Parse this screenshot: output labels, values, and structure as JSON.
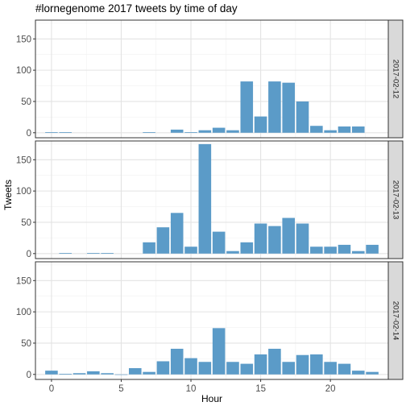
{
  "chart_data": {
    "type": "bar",
    "title": "#lornegenome 2017 tweets by time of day",
    "xlabel": "Hour",
    "ylabel": "Tweets",
    "xlim": [
      -1.15,
      24.15
    ],
    "ylim": [
      -8,
      180
    ],
    "x_ticks": [
      0,
      5,
      10,
      15,
      20
    ],
    "y_ticks": [
      0,
      50,
      100,
      150
    ],
    "x_minor_ticks": [
      2.5,
      7.5,
      12.5,
      17.5,
      22.5
    ],
    "y_minor_ticks": [
      25,
      75,
      125,
      175
    ],
    "grid": true,
    "bar_color": "#5b9bc8",
    "panel_border_color": "#333333",
    "strip_fill": "#d9d9d9",
    "facets": [
      {
        "label": "2017-02-12",
        "x": [
          0,
          1,
          7,
          9,
          10,
          11,
          12,
          13,
          14,
          15,
          16,
          17,
          18,
          19,
          20,
          21,
          22
        ],
        "values": [
          1,
          1,
          1,
          5,
          1,
          4,
          8,
          4,
          82,
          26,
          82,
          80,
          50,
          11,
          4,
          10,
          10
        ]
      },
      {
        "label": "2017-02-13",
        "x": [
          1,
          3,
          4,
          7,
          8,
          9,
          10,
          11,
          12,
          13,
          14,
          15,
          16,
          17,
          18,
          19,
          20,
          21,
          22,
          23
        ],
        "values": [
          1,
          1,
          1,
          18,
          42,
          65,
          11,
          175,
          35,
          4,
          18,
          48,
          44,
          57,
          48,
          11,
          11,
          14,
          4,
          14
        ]
      },
      {
        "label": "2017-02-14",
        "x": [
          0,
          1,
          2,
          3,
          4,
          5,
          6,
          7,
          8,
          9,
          10,
          11,
          12,
          13,
          14,
          15,
          16,
          17,
          18,
          19,
          20,
          21,
          22,
          23
        ],
        "values": [
          6,
          1,
          2,
          5,
          2,
          0,
          10,
          4,
          21,
          41,
          26,
          20,
          74,
          20,
          17,
          32,
          41,
          20,
          31,
          32,
          20,
          17,
          6,
          4
        ]
      }
    ]
  }
}
